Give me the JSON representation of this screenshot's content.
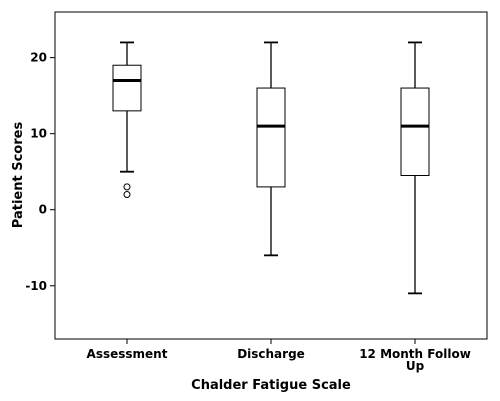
{
  "chart_data": {
    "type": "boxplot",
    "title": "",
    "xlabel": "Chalder Fatigue Scale",
    "ylabel": "Patient Scores",
    "ylim": [
      -17,
      26
    ],
    "yticks": [
      20,
      10,
      0,
      -10
    ],
    "ytick_labels": [
      "20",
      "10",
      "0",
      "-10"
    ],
    "grid": false,
    "legend": "none",
    "categories": [
      {
        "label_lines": [
          "Assessment"
        ],
        "min": 5,
        "q1": 13,
        "median": 17,
        "q3": 19,
        "max": 22,
        "outliers": [
          3,
          2
        ]
      },
      {
        "label_lines": [
          "Discharge"
        ],
        "min": -6,
        "q1": 3,
        "median": 11,
        "q3": 16,
        "max": 22,
        "outliers": []
      },
      {
        "label_lines": [
          "12 Month Follow",
          "Up"
        ],
        "min": -11,
        "q1": 4.5,
        "median": 11,
        "q3": 16,
        "max": 22,
        "outliers": []
      }
    ]
  }
}
